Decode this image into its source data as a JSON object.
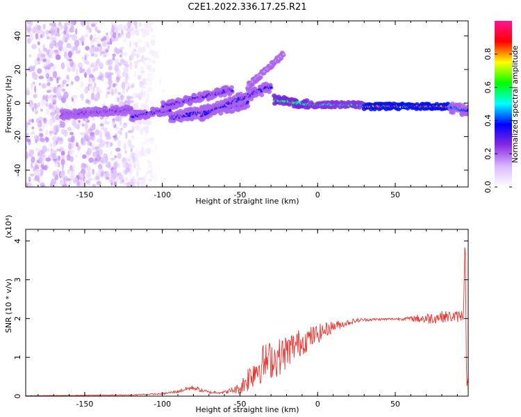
{
  "title": "C2E1.2022.336.17.25.R21",
  "chart_data": [
    {
      "type": "heatmap",
      "xlabel": "Height of straight line (km)",
      "ylabel": "Frequency (Hz)",
      "xlim": [
        -188,
        97
      ],
      "ylim": [
        -50,
        49
      ],
      "xticks": [
        -150,
        -100,
        -50,
        0,
        50
      ],
      "yticks": [
        -40,
        -20,
        0,
        20,
        40
      ],
      "colorbar": {
        "label": "Normalized spectral amplitude",
        "range": [
          0,
          1
        ],
        "ticks": [
          0.0,
          0.2,
          0.4,
          0.6,
          0.8
        ],
        "colormap": [
          "#ffffff",
          "#d9b8ff",
          "#8a2be2",
          "#0000ff",
          "#00ffff",
          "#00ff00",
          "#ffff00",
          "#ff0000",
          "#ff1493"
        ]
      },
      "segments": [
        {
          "x_start": -165,
          "x_end": -120,
          "freq_start": -7,
          "freq_end": -4,
          "amplitude": 0.25,
          "spread": 3
        },
        {
          "x_start": -120,
          "x_end": -95,
          "freq_start": -8,
          "freq_end": -4,
          "amplitude": 0.35,
          "spread": 3
        },
        {
          "x_start": -100,
          "x_end": -55,
          "freq_start": -2,
          "freq_end": 8,
          "amplitude": 0.3,
          "spread": 3
        },
        {
          "x_start": -95,
          "x_end": -45,
          "freq_start": -9,
          "freq_end": 0,
          "amplitude": 0.35,
          "spread": 4
        },
        {
          "x_start": -75,
          "x_end": -30,
          "freq_start": -7,
          "freq_end": 10,
          "amplitude": 0.35,
          "spread": 4
        },
        {
          "x_start": -45,
          "x_end": -22,
          "freq_start": 10,
          "freq_end": 29,
          "amplitude": 0.15,
          "spread": 2
        },
        {
          "x_start": -28,
          "x_end": -5,
          "freq_start": 2,
          "freq_end": -1,
          "amplitude": 0.6,
          "spread": 3
        },
        {
          "x_start": -5,
          "x_end": 30,
          "freq_start": -1,
          "freq_end": -1,
          "amplitude": 0.55,
          "spread": 2
        },
        {
          "x_start": 30,
          "x_end": 85,
          "freq_start": -2,
          "freq_end": -2,
          "amplitude": 0.85,
          "spread": 2
        },
        {
          "x_start": 85,
          "x_end": 97,
          "freq_start": -2,
          "freq_end": -5,
          "amplitude": 0.4,
          "spread": 4
        }
      ],
      "noise_region": {
        "x_start": -188,
        "x_end": -105,
        "freq_range": [
          -50,
          49
        ],
        "amplitude": 0.15
      }
    },
    {
      "type": "line",
      "xlabel": "Height of straight line (km)",
      "ylabel": "SNR (10 * v/v)",
      "y_multiplier": "(x10⁴)",
      "xlim": [
        -188,
        97
      ],
      "ylim": [
        0,
        4.3
      ],
      "xticks": [
        -150,
        -100,
        -50,
        0,
        50
      ],
      "yticks": [
        0,
        1,
        2,
        3,
        4
      ],
      "color": "#e8322c",
      "x": [
        -188,
        -150,
        -120,
        -100,
        -90,
        -85,
        -80,
        -75,
        -70,
        -60,
        -55,
        -50,
        -45,
        -40,
        -35,
        -30,
        -25,
        -20,
        -15,
        -10,
        -5,
        0,
        5,
        10,
        15,
        20,
        25,
        30,
        40,
        50,
        60,
        65,
        70,
        75,
        80,
        85,
        90,
        94,
        95,
        96,
        97
      ],
      "y": [
        0.01,
        0.02,
        0.03,
        0.06,
        0.12,
        0.18,
        0.22,
        0.15,
        0.1,
        0.1,
        0.15,
        0.2,
        0.45,
        0.7,
        0.85,
        0.95,
        1.0,
        1.15,
        1.3,
        1.4,
        1.5,
        1.6,
        1.7,
        1.8,
        1.85,
        1.9,
        1.95,
        1.97,
        1.98,
        1.99,
        2.0,
        2.0,
        2.0,
        2.02,
        2.05,
        2.05,
        2.05,
        2.1,
        4.3,
        0.2,
        0.5
      ],
      "noise_amplitude": [
        0.005,
        0.01,
        0.01,
        0.02,
        0.04,
        0.06,
        0.07,
        0.05,
        0.04,
        0.04,
        0.08,
        0.15,
        0.35,
        0.45,
        0.5,
        0.5,
        0.5,
        0.45,
        0.4,
        0.35,
        0.3,
        0.25,
        0.2,
        0.15,
        0.1,
        0.08,
        0.06,
        0.04,
        0.03,
        0.03,
        0.05,
        0.12,
        0.15,
        0.15,
        0.15,
        0.15,
        0.15,
        0.15,
        0,
        0,
        0
      ]
    }
  ]
}
